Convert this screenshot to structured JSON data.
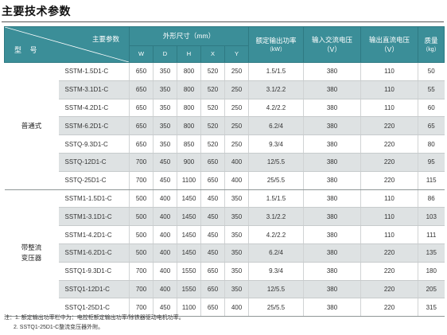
{
  "title": "主要技术参数",
  "table": {
    "header": {
      "diag_top": "主要参数",
      "diag_bottom": "型  号",
      "dims_group": "外形尺寸（mm）",
      "dim_cols": [
        "W",
        "D",
        "H",
        "X",
        "Y"
      ],
      "power": "额定输出功率",
      "power_unit": "（kW）",
      "input": "输入交流电压",
      "input_unit": "（V）",
      "output": "输出直流电压",
      "output_unit": "（V）",
      "mass": "质量",
      "mass_unit": "（kg）"
    },
    "groups": [
      {
        "name": "普通式",
        "rows": [
          {
            "model": "SSTM-1.5D1-C",
            "w": "650",
            "d": "350",
            "h": "800",
            "x": "520",
            "y": "250",
            "power": "1.5/1.5",
            "input": "380",
            "output": "110",
            "mass": "50"
          },
          {
            "model": "SSTM-3.1D1-C",
            "w": "650",
            "d": "350",
            "h": "800",
            "x": "520",
            "y": "250",
            "power": "3.1/2.2",
            "input": "380",
            "output": "110",
            "mass": "55"
          },
          {
            "model": "SSTM-4.2D1-C",
            "w": "650",
            "d": "350",
            "h": "800",
            "x": "520",
            "y": "250",
            "power": "4.2/2.2",
            "input": "380",
            "output": "110",
            "mass": "60"
          },
          {
            "model": "SSTM-6.2D1-C",
            "w": "650",
            "d": "350",
            "h": "800",
            "x": "520",
            "y": "250",
            "power": "6.2/4",
            "input": "380",
            "output": "220",
            "mass": "65"
          },
          {
            "model": "SSTQ-9.3D1-C",
            "w": "650",
            "d": "350",
            "h": "850",
            "x": "520",
            "y": "250",
            "power": "9.3/4",
            "input": "380",
            "output": "220",
            "mass": "80"
          },
          {
            "model": "SSTQ-12D1-C",
            "w": "700",
            "d": "450",
            "h": "900",
            "x": "650",
            "y": "400",
            "power": "12/5.5",
            "input": "380",
            "output": "220",
            "mass": "95"
          },
          {
            "model": "SSTQ-25D1-C",
            "w": "700",
            "d": "450",
            "h": "1100",
            "x": "650",
            "y": "400",
            "power": "25/5.5",
            "input": "380",
            "output": "220",
            "mass": "115"
          }
        ]
      },
      {
        "name": "带整流变压器",
        "rows": [
          {
            "model": "SSTM1-1.5D1-C",
            "w": "500",
            "d": "400",
            "h": "1450",
            "x": "450",
            "y": "350",
            "power": "1.5/1.5",
            "input": "380",
            "output": "110",
            "mass": "86"
          },
          {
            "model": "SSTM1-3.1D1-C",
            "w": "500",
            "d": "400",
            "h": "1450",
            "x": "450",
            "y": "350",
            "power": "3.1/2.2",
            "input": "380",
            "output": "110",
            "mass": "103"
          },
          {
            "model": "SSTM1-4.2D1-C",
            "w": "500",
            "d": "400",
            "h": "1450",
            "x": "450",
            "y": "350",
            "power": "4.2/2.2",
            "input": "380",
            "output": "110",
            "mass": "111"
          },
          {
            "model": "SSTM1-6.2D1-C",
            "w": "500",
            "d": "400",
            "h": "1450",
            "x": "450",
            "y": "350",
            "power": "6.2/4",
            "input": "380",
            "output": "220",
            "mass": "135"
          },
          {
            "model": "SSTQ1-9.3D1-C",
            "w": "700",
            "d": "400",
            "h": "1550",
            "x": "650",
            "y": "350",
            "power": "9.3/4",
            "input": "380",
            "output": "220",
            "mass": "180"
          },
          {
            "model": "SSTQ1-12D1-C",
            "w": "700",
            "d": "400",
            "h": "1550",
            "x": "650",
            "y": "350",
            "power": "12/5.5",
            "input": "380",
            "output": "220",
            "mass": "205"
          },
          {
            "model": "SSTQ1-25D1-C",
            "w": "700",
            "d": "450",
            "h": "1100",
            "x": "650",
            "y": "400",
            "power": "25/5.5",
            "input": "380",
            "output": "220",
            "mass": "315"
          }
        ]
      }
    ]
  },
  "notes": [
    "注：1. 额定输出功率栏中为：电控柜额定输出功率/除铁器驱动电机功率。",
    "2. SSTQ1-25D1-C整流变压器外附。"
  ],
  "colors": {
    "header_bg": "#3b8e98",
    "row_shade": "#dee2e3"
  }
}
